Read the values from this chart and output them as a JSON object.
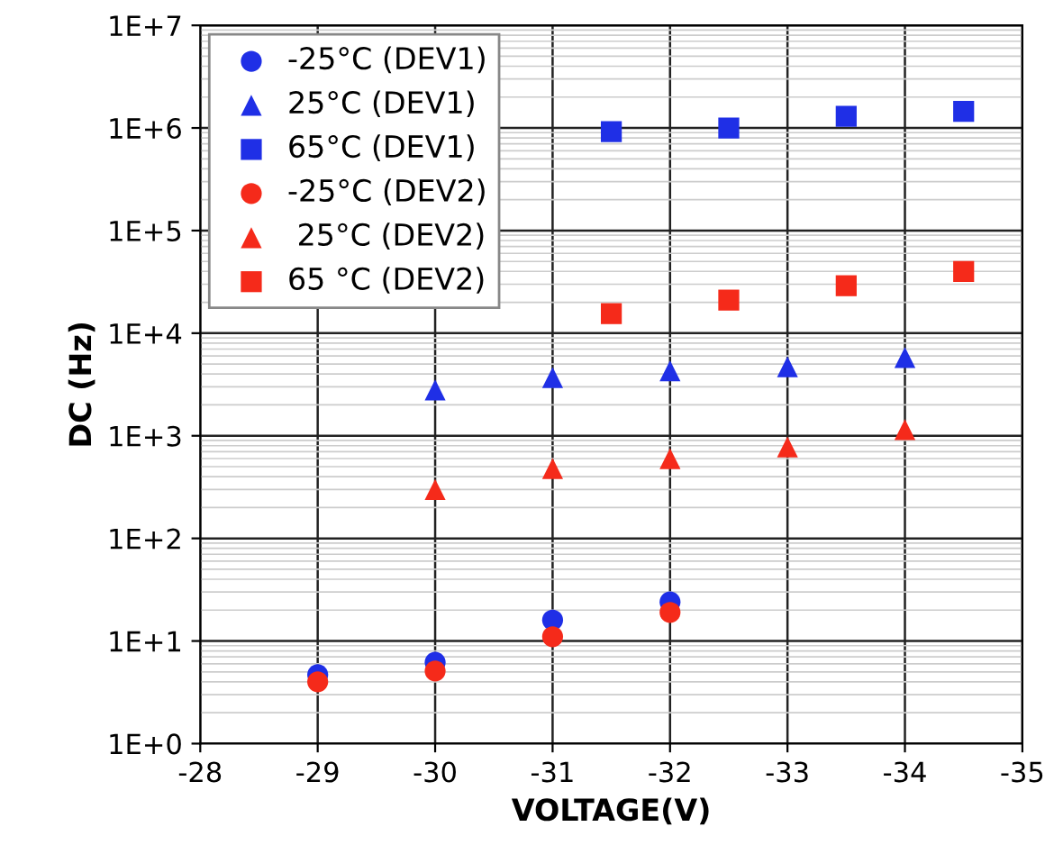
{
  "chart_data": {
    "type": "scatter",
    "xlabel": "VOLTAGE(V)",
    "ylabel": "DC (Hz)",
    "log": "y",
    "grid": true,
    "legend": "top left",
    "xlim": [
      -28,
      -35
    ],
    "xticks": [
      -28,
      -29,
      -30,
      -31,
      -32,
      -33,
      -34,
      -35
    ],
    "ylim": [
      1,
      10000000
    ],
    "yticks": [
      {
        "value": 1,
        "label": "1E+0"
      },
      {
        "value": 10,
        "label": "1E+1"
      },
      {
        "value": 100,
        "label": "1E+2"
      },
      {
        "value": 1000,
        "label": "1E+3"
      },
      {
        "value": 10000,
        "label": "1E+4"
      },
      {
        "value": 100000,
        "label": "1E+5"
      },
      {
        "value": 1000000,
        "label": "1E+6"
      },
      {
        "value": 10000000,
        "label": "1E+7"
      }
    ],
    "series": [
      {
        "name": "-25°C (DEV1)",
        "color": "#1f2fe6",
        "marker": "circle",
        "x": [
          -29,
          -30,
          -31,
          -32
        ],
        "values": [
          4.7,
          6.2,
          16,
          24
        ]
      },
      {
        "name": "25°C (DEV1)",
        "color": "#1f2fe6",
        "marker": "triangle",
        "x": [
          -30,
          -31,
          -32,
          -33,
          -34
        ],
        "values": [
          2800,
          3700,
          4300,
          4700,
          5800
        ]
      },
      {
        "name": "65°C (DEV1)",
        "color": "#1f2fe6",
        "marker": "square",
        "x": [
          -31.5,
          -32.5,
          -33.5,
          -34.5
        ],
        "values": [
          920000,
          1000000,
          1300000,
          1450000
        ]
      },
      {
        "name": "-25°C (DEV2)",
        "color": "#f52a1a",
        "marker": "circle",
        "x": [
          -29,
          -30,
          -31,
          -32
        ],
        "values": [
          4.0,
          5.1,
          11,
          19
        ]
      },
      {
        "name": " 25°C (DEV2)",
        "color": "#f52a1a",
        "marker": "triangle",
        "x": [
          -30,
          -31,
          -32,
          -33,
          -34
        ],
        "values": [
          300,
          480,
          600,
          780,
          1150
        ]
      },
      {
        "name": "65 °C (DEV2)",
        "color": "#f52a1a",
        "marker": "square",
        "x": [
          -31.5,
          -32.5,
          -33.5,
          -34.5
        ],
        "values": [
          15500,
          21000,
          29000,
          40000
        ]
      }
    ]
  }
}
